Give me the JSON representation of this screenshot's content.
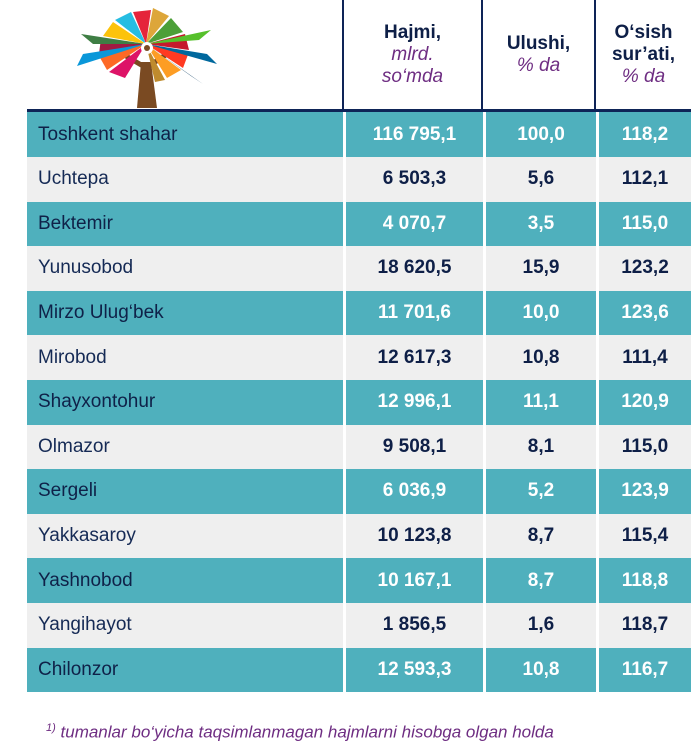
{
  "header": {
    "col1_title": "Hajmi,",
    "col1_unit_line1": "mlrd.",
    "col1_unit_line2": "so‘mda",
    "col2_title": "Ulushi,",
    "col2_unit": "% da",
    "col3_title_line1": "O‘sish",
    "col3_title_line2": "sur’ati,",
    "col3_unit": "% da"
  },
  "rows": [
    {
      "name": "Toshkent shahar",
      "volume": "116 795,1",
      "share": "100,0",
      "growth": "118,2"
    },
    {
      "name": "Uchtepa",
      "volume": "6 503,3",
      "share": "5,6",
      "growth": "112,1"
    },
    {
      "name": "Bektemir",
      "volume": "4 070,7",
      "share": "3,5",
      "growth": "115,0"
    },
    {
      "name": "Yunusobod",
      "volume": "18 620,5",
      "share": "15,9",
      "growth": "123,2"
    },
    {
      "name": "Mirzo Ulug‘bek",
      "volume": "11 701,6",
      "share": "10,0",
      "growth": "123,6"
    },
    {
      "name": "Mirobod",
      "volume": "12 617,3",
      "share": "10,8",
      "growth": "111,4"
    },
    {
      "name": "Shayxontohur",
      "volume": "12 996,1",
      "share": "11,1",
      "growth": "120,9"
    },
    {
      "name": "Olmazor",
      "volume": "9 508,1",
      "share": "8,1",
      "growth": "115,0"
    },
    {
      "name": "Sergeli",
      "volume": "6 036,9",
      "share": "5,2",
      "growth": "123,9"
    },
    {
      "name": "Yakkasaroy",
      "volume": "10 123,8",
      "share": "8,7",
      "growth": "115,4"
    },
    {
      "name": "Yashnobod",
      "volume": "10 167,1",
      "share": "8,7",
      "growth": "118,8"
    },
    {
      "name": "Yangihayot",
      "volume": "1 856,5",
      "share": "1,6",
      "growth": "118,7"
    },
    {
      "name": "Chilonzor",
      "volume": "12 593,3",
      "share": "10,8",
      "growth": "116,7"
    }
  ],
  "footnote": {
    "marker": "1)",
    "text": "tumanlar  bo‘yicha taqsimlanmagan hajmlarni hisobga olgan holda"
  },
  "colors": {
    "row_teal": "#4fb0bd",
    "row_gray": "#efefef",
    "header_text": "#0e1f47",
    "unit_purple": "#6e2d82",
    "rule_navy": "#0e2457"
  },
  "logo": {
    "icon": "tree-of-icons-logo"
  }
}
